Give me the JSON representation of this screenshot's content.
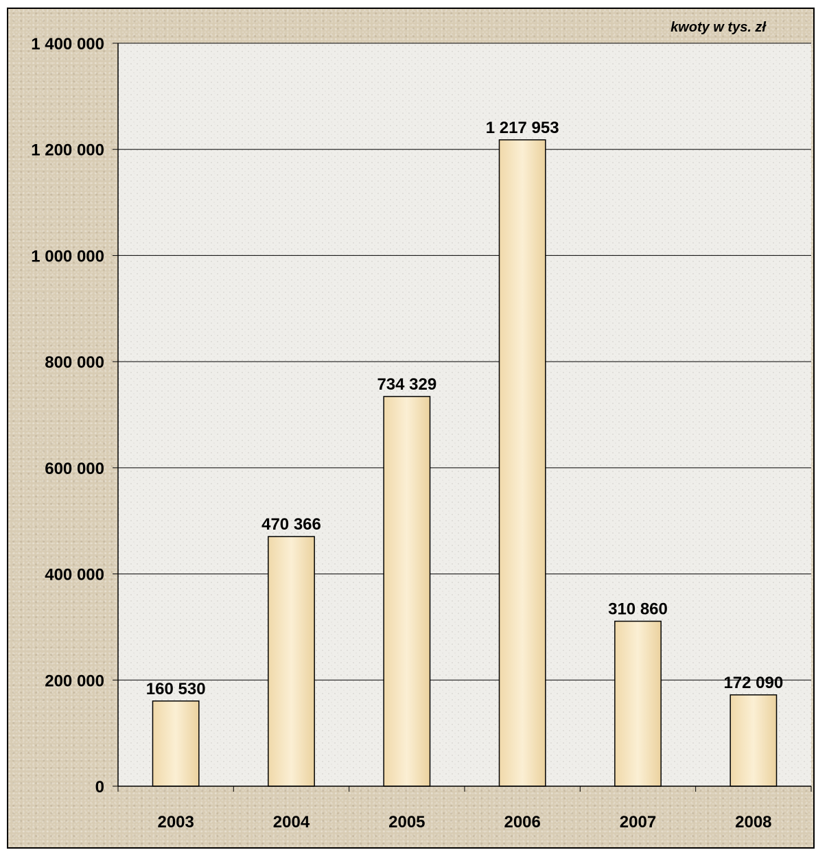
{
  "chart_data": {
    "type": "bar",
    "unit_note": "kwoty w tys. zł",
    "categories": [
      "2003",
      "2004",
      "2005",
      "2006",
      "2007",
      "2008"
    ],
    "values": [
      160530,
      470366,
      734329,
      1217953,
      310860,
      172090
    ],
    "value_labels": [
      "160 530",
      "470 366",
      "734 329",
      "1 217 953",
      "310 860",
      "172 090"
    ],
    "ylim": [
      0,
      1400000
    ],
    "yticks": [
      0,
      200000,
      400000,
      600000,
      800000,
      1000000,
      1200000,
      1400000
    ],
    "ytick_labels": [
      "0",
      "200 000",
      "400 000",
      "600 000",
      "800 000",
      "1 000 000",
      "1 200 000",
      "1 400 000"
    ],
    "grid": "horizontal",
    "legend": "none"
  },
  "colors": {
    "bar_fill_light": "#fbedd0",
    "bar_fill_dark": "#e9cf9c",
    "plot_background": "#eeede9",
    "grid": "#000000"
  }
}
